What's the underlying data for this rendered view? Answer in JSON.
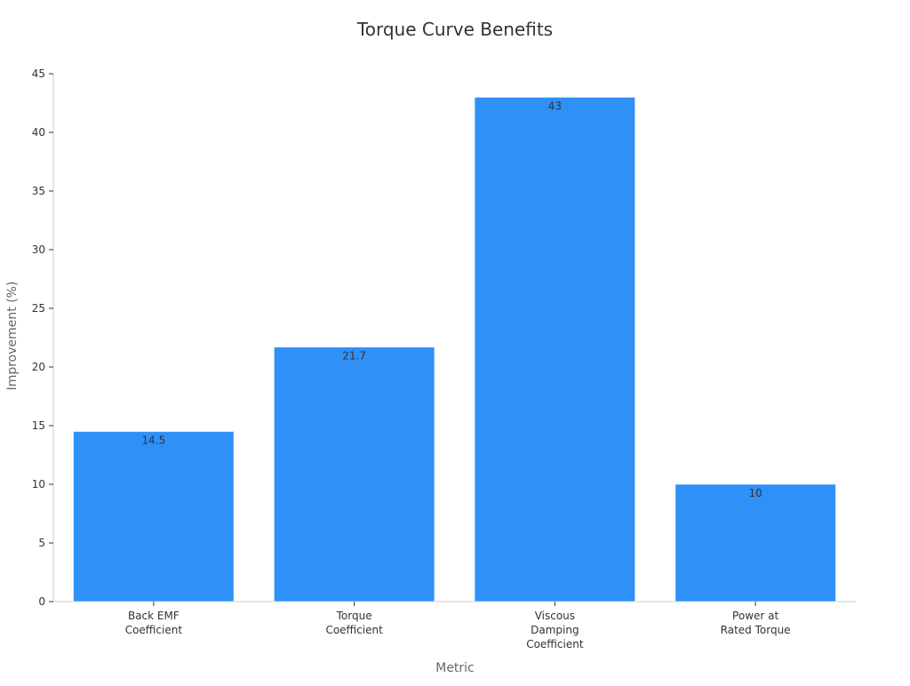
{
  "chart_data": {
    "type": "bar",
    "title": "Torque Curve Benefits",
    "xlabel": "Metric",
    "ylabel": "Improvement (%)",
    "categories": [
      [
        "Back EMF",
        "Coefficient"
      ],
      [
        "Torque",
        "Coefficient"
      ],
      [
        "Viscous",
        "Damping",
        "Coefficient"
      ],
      [
        "Power at",
        "Rated Torque"
      ]
    ],
    "values": [
      14.5,
      21.7,
      43,
      10
    ],
    "data_labels": [
      "14.5",
      "21.7",
      "43",
      "10"
    ],
    "ylim": [
      0,
      45
    ],
    "yticks": [
      0,
      5,
      10,
      15,
      20,
      25,
      30,
      35,
      40,
      45
    ],
    "grid": false,
    "legend": "none",
    "bar_color": "#2f90f8",
    "axis_color": "#cccccc",
    "text_color": "#333333",
    "label_color": "#666666"
  }
}
